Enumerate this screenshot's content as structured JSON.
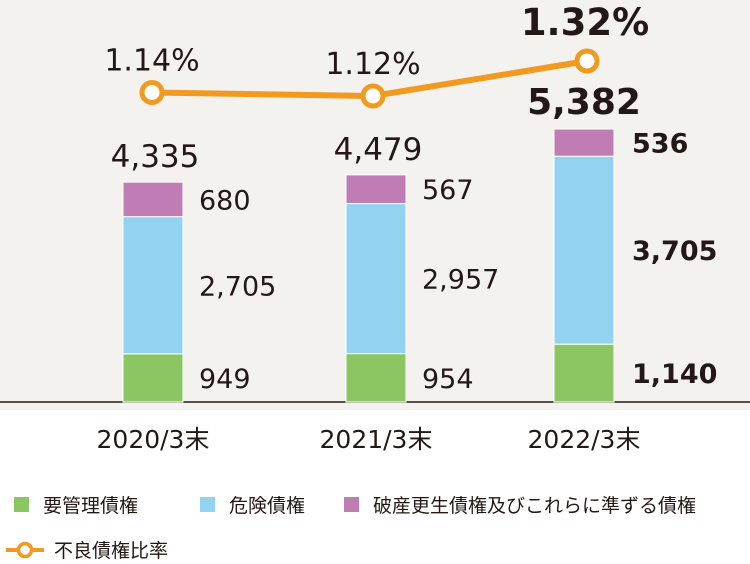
{
  "chart_data": {
    "type": "bar",
    "stacked": true,
    "categories": [
      "2020/3末",
      "2021/3末",
      "2022/3末"
    ],
    "series": [
      {
        "name": "要管理債権",
        "color": "#8cc663",
        "values": [
          949,
          954,
          1140
        ],
        "labels": [
          "949",
          "954",
          "1,140"
        ]
      },
      {
        "name": "危険債権",
        "color": "#92d3f1",
        "values": [
          2705,
          2957,
          3705
        ],
        "labels": [
          "2,705",
          "2,957",
          "3,705"
        ]
      },
      {
        "name": "破産更生債権及びこれらに準ずる債権",
        "color": "#bf7db4",
        "values": [
          680,
          567,
          536
        ],
        "labels": [
          "680",
          "567",
          "536"
        ]
      }
    ],
    "totals": [
      4335,
      4479,
      5382
    ],
    "total_labels": [
      "4,335",
      "4,479",
      "5,382"
    ],
    "line_series": {
      "name": "不良債権比率",
      "color": "#f19a1f",
      "values": [
        1.14,
        1.12,
        1.32
      ],
      "labels": [
        "1.14%",
        "1.12%",
        "1.32%"
      ]
    },
    "legend_position": "bottom",
    "grid": false
  },
  "legend": {
    "item1": "要管理債権",
    "item2": "危険債権",
    "item3": "破産更生債権及びこれらに準ずる債権",
    "item4": "不良債権比率"
  }
}
